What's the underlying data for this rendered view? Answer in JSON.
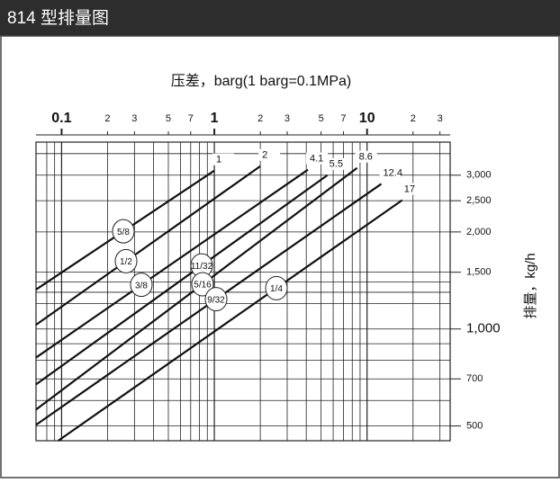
{
  "chart_data": {
    "type": "line",
    "title": "814 型排量图",
    "x_label": "压差，barg(1 barg=0.1MPa)",
    "y_label": "排量，kg/h",
    "log_x": true,
    "log_y": true,
    "grid": true,
    "xlim": [
      0.068,
      35
    ],
    "ylim": [
      450,
      3800
    ],
    "xticks": [
      0.1,
      {
        "value": 0.2,
        "label": "2"
      },
      {
        "value": 0.3,
        "label": "3"
      },
      {
        "value": 0.5,
        "label": "5"
      },
      {
        "value": 0.7,
        "label": "7"
      },
      1,
      2,
      3,
      5,
      7,
      10,
      {
        "value": 20,
        "label": "2"
      },
      {
        "value": 30,
        "label": "3"
      }
    ],
    "x_minor_ticks": [
      0.08,
      0.09,
      0.4,
      0.6,
      0.8,
      0.9,
      4,
      6,
      8,
      9
    ],
    "yticks": [
      500,
      700,
      {
        "value": 1000,
        "label": "1,000"
      },
      {
        "value": 1500,
        "label": "1,500"
      },
      {
        "value": 2000,
        "label": "2,000"
      },
      {
        "value": 2500,
        "label": "2,500"
      },
      {
        "value": 3000,
        "label": "3,000"
      }
    ],
    "y_minor_ticks": [
      600,
      800,
      900,
      1200,
      1300,
      1400,
      3500
    ],
    "series": [
      {
        "name": "5/8",
        "color": "#111111",
        "x": [
          0.068,
          1
        ],
        "values": [
          1325,
          3100
        ]
      },
      {
        "name": "1/2",
        "color": "#111111",
        "x": [
          0.068,
          2
        ],
        "values": [
          1030,
          3200
        ]
      },
      {
        "name": "3/8",
        "color": "#111111",
        "x": [
          0.068,
          4.1
        ],
        "values": [
          815,
          3120
        ]
      },
      {
        "name": "11/32",
        "color": "#111111",
        "x": [
          0.068,
          5.5
        ],
        "values": [
          673,
          3000
        ]
      },
      {
        "name": "5/16",
        "color": "#111111",
        "x": [
          0.068,
          8.6
        ],
        "values": [
          562,
          3160
        ]
      },
      {
        "name": "9/32",
        "color": "#111111",
        "x": [
          0.068,
          12.4
        ],
        "values": [
          504,
          2820
        ]
      },
      {
        "name": "1/4",
        "color": "#111111",
        "x": [
          0.095,
          17
        ],
        "values": [
          450,
          2510
        ]
      }
    ]
  }
}
